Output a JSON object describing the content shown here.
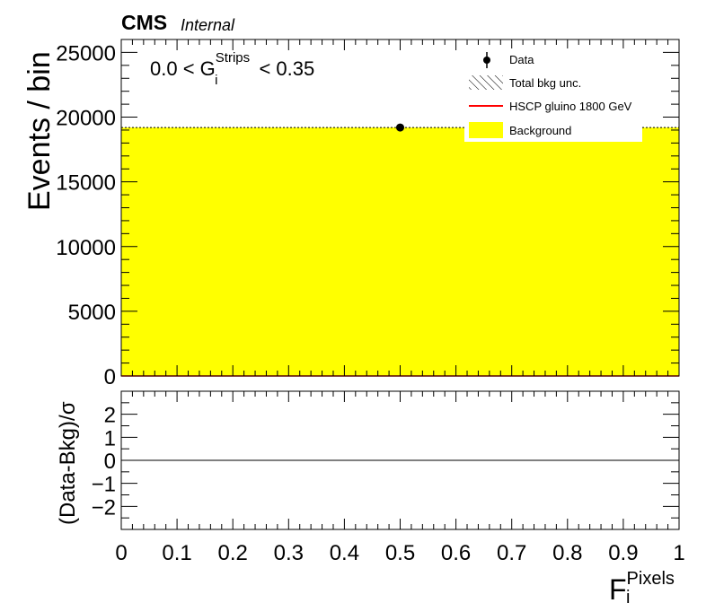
{
  "header": {
    "experiment": "CMS",
    "status": "Internal"
  },
  "annotation": {
    "left": "0.0 < G",
    "sup": "Strips",
    "sub": "i",
    "right": "< 0.35"
  },
  "colors": {
    "background_fill": "#ffff00",
    "signal_line": "#ff0000",
    "data_marker": "#000000"
  },
  "legend": {
    "placement": "top-right",
    "items": [
      {
        "label": "Data",
        "icon": "data-marker-icon"
      },
      {
        "label": "Total bkg unc.",
        "icon": "hatch-icon"
      },
      {
        "label": "HSCP gluino 1800 GeV",
        "icon": "red-line-icon"
      },
      {
        "label": "Background",
        "icon": "yellow-box-icon"
      }
    ]
  },
  "chart_data": [
    {
      "type": "bar",
      "panel": "main",
      "ylabel": "Events / bin",
      "xlim": [
        0,
        1
      ],
      "ylim": [
        0,
        26000
      ],
      "yticks": [
        0,
        5000,
        10000,
        15000,
        20000,
        25000
      ],
      "series": [
        {
          "name": "Background",
          "kind": "filled-histogram",
          "bins": [
            {
              "x0": 0,
              "x1": 1,
              "y": 19200
            }
          ]
        },
        {
          "name": "HSCP gluino 1800 GeV",
          "kind": "line-histogram",
          "bins": [
            {
              "x0": 0,
              "x1": 1,
              "y": 0
            }
          ]
        },
        {
          "name": "Data",
          "kind": "points",
          "points": [
            {
              "x": 0.5,
              "y": 19200
            }
          ]
        }
      ]
    },
    {
      "type": "line",
      "panel": "ratio",
      "ylabel": "(Data-Bkg)/σ",
      "xlabel": "F",
      "xlabel_sup": "Pixels",
      "xlabel_sub": "i",
      "xlim": [
        0,
        1
      ],
      "ylim": [
        -3,
        3
      ],
      "yticks": [
        -2,
        -1,
        0,
        1,
        2
      ],
      "ytick_labels": [
        "−2",
        "−1",
        "0",
        "1",
        "2"
      ],
      "xticks": [
        0,
        0.1,
        0.2,
        0.3,
        0.4,
        0.5,
        0.6,
        0.7,
        0.8,
        0.9,
        1
      ],
      "xtick_labels": [
        "0",
        "0.1",
        "0.2",
        "0.3",
        "0.4",
        "0.5",
        "0.6",
        "0.7",
        "0.8",
        "0.9",
        "1"
      ],
      "reference_line": 0
    }
  ]
}
